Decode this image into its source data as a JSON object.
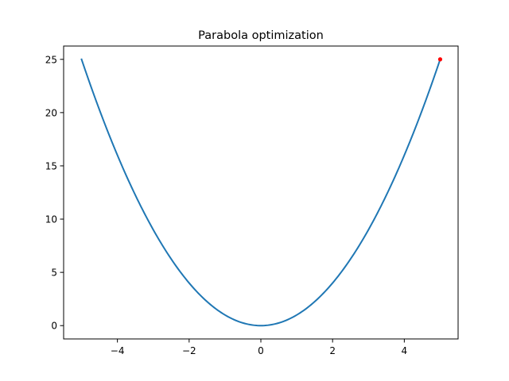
{
  "chart_data": {
    "type": "line",
    "title": "Parabola optimization",
    "xlabel": "",
    "ylabel": "",
    "xlim": [
      -5.5,
      5.5
    ],
    "ylim": [
      -1.25,
      26.25
    ],
    "xticks": [
      -4,
      -2,
      0,
      2,
      4
    ],
    "xtick_labels": [
      "−4",
      "−2",
      "0",
      "2",
      "4"
    ],
    "yticks": [
      0,
      5,
      10,
      15,
      20,
      25
    ],
    "ytick_labels": [
      "0",
      "5",
      "10",
      "15",
      "20",
      "25"
    ],
    "grid": false,
    "series": [
      {
        "type": "line",
        "color": "#1f77b4",
        "x": [
          -5.0,
          -4.5,
          -4.0,
          -3.5,
          -3.0,
          -2.5,
          -2.0,
          -1.5,
          -1.0,
          -0.5,
          0.0,
          0.5,
          1.0,
          1.5,
          2.0,
          2.5,
          3.0,
          3.5,
          4.0,
          4.5,
          5.0
        ],
        "y": [
          25.0,
          20.25,
          16.0,
          12.25,
          9.0,
          6.25,
          4.0,
          2.25,
          1.0,
          0.25,
          0.0,
          0.25,
          1.0,
          2.25,
          4.0,
          6.25,
          9.0,
          12.25,
          16.0,
          20.25,
          25.0
        ]
      },
      {
        "type": "scatter",
        "color": "#ff0000",
        "x": [
          5.0
        ],
        "y": [
          25.0
        ]
      }
    ]
  }
}
